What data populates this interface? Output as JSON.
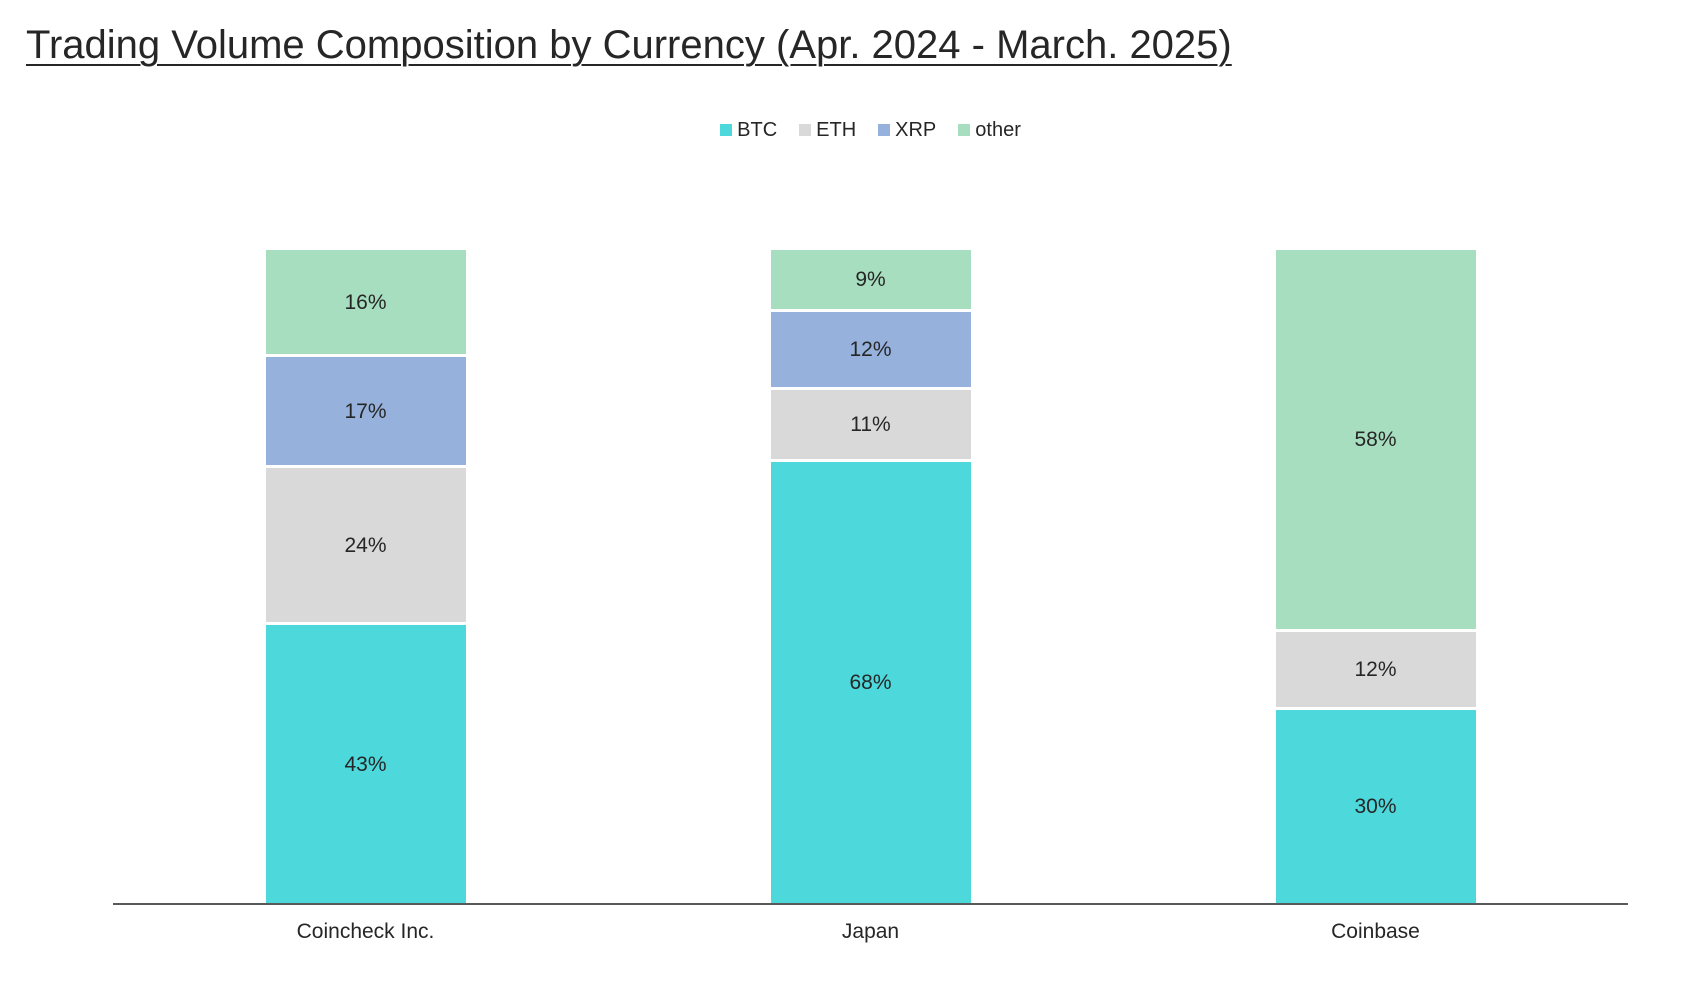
{
  "page": {
    "background": "#ffffff"
  },
  "chart_data": {
    "type": "bar",
    "variant": "stacked-100-percent-column",
    "title": "Trading Volume Composition by Currency (Apr. 2024 - March. 2025)",
    "categories": [
      "Coincheck Inc.",
      "Japan",
      "Coinbase"
    ],
    "series": [
      {
        "name": "BTC",
        "color": "#4DD8DB",
        "values": [
          43,
          68,
          30
        ],
        "labels": [
          "43%",
          "68%",
          "30%"
        ]
      },
      {
        "name": "ETH",
        "color": "#D9D9D9",
        "values": [
          24,
          11,
          12
        ],
        "labels": [
          "24%",
          "11%",
          "12%"
        ]
      },
      {
        "name": "XRP",
        "color": "#95B1DC",
        "values": [
          17,
          12,
          0
        ],
        "labels": [
          "17%",
          "12%",
          ""
        ]
      },
      {
        "name": "other",
        "color": "#A7DEBF",
        "values": [
          16,
          9,
          58
        ],
        "labels": [
          "16%",
          "9%",
          "58%"
        ]
      }
    ],
    "stack_order_bottom_to_top": [
      "BTC",
      "ETH",
      "XRP",
      "other"
    ],
    "ylim": [
      0,
      100
    ],
    "grid": false,
    "value_axis_visible": false,
    "legend_position": "top-center",
    "axis_color": "#595959",
    "label_color": "#262626",
    "title_color": "#262626"
  }
}
